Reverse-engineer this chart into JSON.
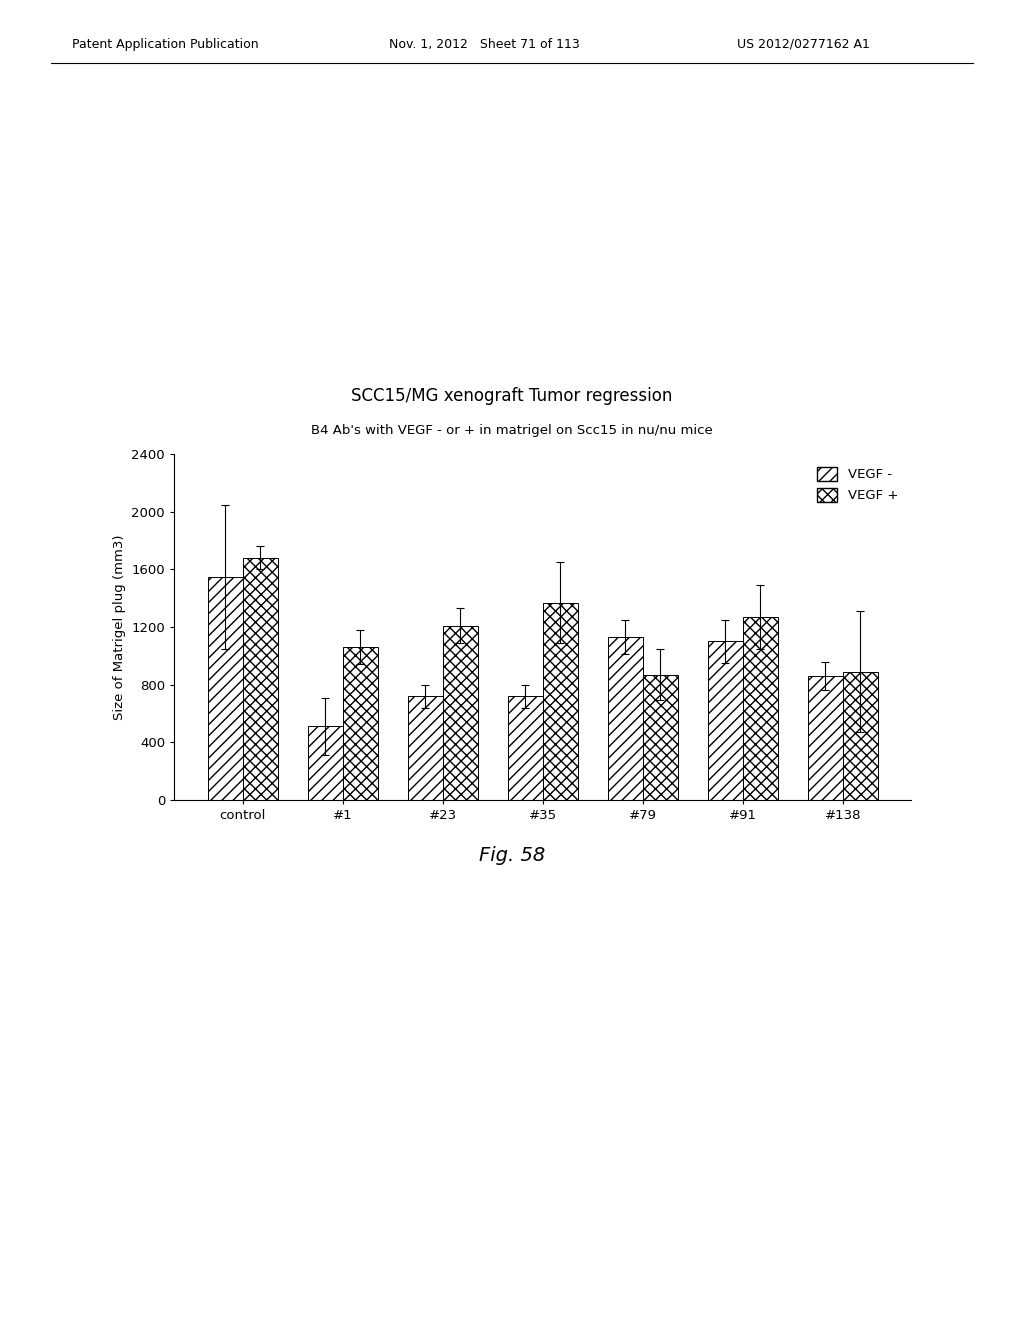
{
  "title": "SCC15/MG xenograft Tumor regression",
  "subtitle": "B4 Ab's with VEGF - or + in matrigel on Scc15 in nu/nu mice",
  "ylabel": "Size of Matrigel plug (mm3)",
  "categories": [
    "control",
    "#1",
    "#23",
    "#35",
    "#79",
    "#91",
    "#138"
  ],
  "vegf_minus_values": [
    1550,
    510,
    720,
    720,
    1130,
    1100,
    860
  ],
  "vegf_plus_values": [
    1680,
    1060,
    1210,
    1370,
    870,
    1270,
    890
  ],
  "vegf_minus_errors": [
    500,
    200,
    80,
    80,
    120,
    150,
    100
  ],
  "vegf_plus_errors": [
    80,
    120,
    120,
    280,
    180,
    220,
    420
  ],
  "ylim": [
    0,
    2400
  ],
  "yticks": [
    0,
    400,
    800,
    1200,
    1600,
    2000,
    2400
  ],
  "background_color": "#ffffff",
  "legend_labels": [
    "VEGF -",
    "VEGF +"
  ],
  "fig_label": "Fig. 58",
  "bar_width": 0.35,
  "header_left": "Patent Application Publication",
  "header_mid": "Nov. 1, 2012   Sheet 71 of 113",
  "header_right": "US 2012/0277162 A1"
}
